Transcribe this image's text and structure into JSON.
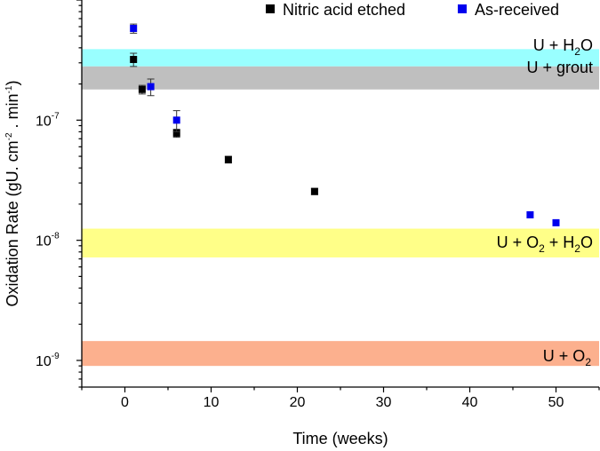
{
  "chart_data": {
    "type": "scatter",
    "xlabel": "Time (weeks)",
    "ylabel": {
      "prefix": "Oxidation Rate (gU. cm",
      "exp1": "-2",
      "middle": " . min",
      "exp2": "-1",
      "suffix": ")"
    },
    "y_scale": "log",
    "xlim": [
      -5,
      55
    ],
    "ylim": [
      6e-10,
      1e-06
    ],
    "x_ticks": [
      0,
      10,
      20,
      30,
      40,
      50
    ],
    "y_ticks": [
      {
        "value": 1e-09,
        "base": "10",
        "exp": "-9"
      },
      {
        "value": 1e-08,
        "base": "10",
        "exp": "-8"
      },
      {
        "value": 1e-07,
        "base": "10",
        "exp": "-7"
      }
    ],
    "bands": [
      {
        "name": "U + H2O",
        "y_low": 2.8e-07,
        "y_high": 3.9e-07,
        "color": "#99ffff",
        "label": {
          "a": "U + H",
          "sub": "2",
          "b": "O",
          "sub2": "",
          "c": ""
        }
      },
      {
        "name": "U + grout",
        "y_low": 1.8e-07,
        "y_high": 2.8e-07,
        "color": "#bfbfbf",
        "label": {
          "a": "U + grout",
          "sub": "",
          "b": "",
          "sub2": "",
          "c": ""
        }
      },
      {
        "name": "U + O2 + H2O",
        "y_low": 7.2e-09,
        "y_high": 1.25e-08,
        "color": "#ffff88",
        "label": {
          "a": "U + O",
          "sub": "2",
          "b": " + H",
          "sub2": "2",
          "c": "O"
        }
      },
      {
        "name": "U + O2",
        "y_low": 9e-10,
        "y_high": 1.45e-09,
        "color": "#fcb08e",
        "label": {
          "a": "U + O",
          "sub": "2",
          "b": "",
          "sub2": "",
          "c": ""
        }
      }
    ],
    "series": [
      {
        "name": "Nitric acid etched",
        "color": "#000000",
        "points": [
          {
            "x": 1,
            "y": 3.2e-07,
            "err": 4e-08
          },
          {
            "x": 2,
            "y": 1.8e-07,
            "err": 1.5e-08
          },
          {
            "x": 6,
            "y": 7.8e-08,
            "err": 6e-09
          },
          {
            "x": 12,
            "y": 4.7e-08,
            "err": 3e-09
          },
          {
            "x": 22,
            "y": 2.55e-08,
            "err": 1.5e-09
          }
        ]
      },
      {
        "name": "As-received",
        "color": "#0000ee",
        "points": [
          {
            "x": 1,
            "y": 5.8e-07,
            "err": 5e-08
          },
          {
            "x": 3,
            "y": 1.9e-07,
            "err": 3e-08
          },
          {
            "x": 6,
            "y": 1e-07,
            "err": 2e-08
          },
          {
            "x": 47,
            "y": 1.63e-08,
            "err": 0
          },
          {
            "x": 50,
            "y": 1.4e-08,
            "err": 0
          }
        ]
      }
    ],
    "legend": [
      {
        "label": "Nitric acid etched",
        "color": "#000000"
      },
      {
        "label": "As-received",
        "color": "#0000ee"
      }
    ],
    "legend_position": "top-right"
  }
}
